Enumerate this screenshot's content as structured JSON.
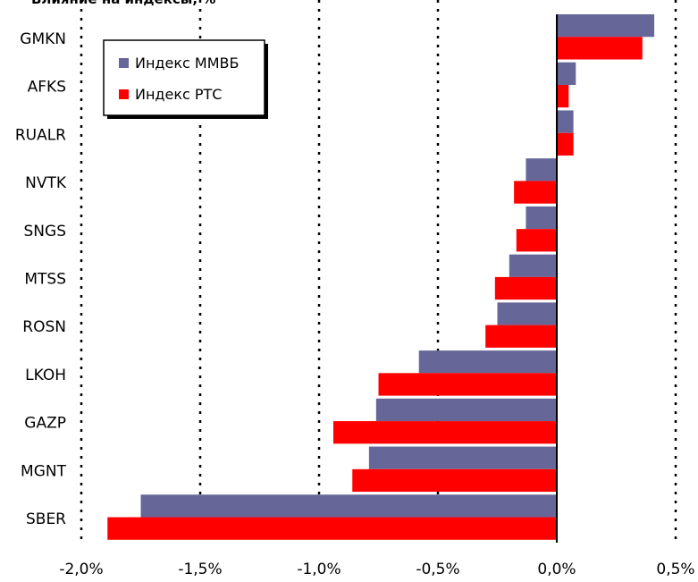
{
  "chart_data": {
    "type": "bar",
    "orientation": "horizontal",
    "title": "Влияние на индексы, %",
    "categories": [
      "GMKN",
      "AFKS",
      "RUALR",
      "NVTK",
      "SNGS",
      "MTSS",
      "ROSN",
      "LKOH",
      "GAZP",
      "MGNT",
      "SBER"
    ],
    "series": [
      {
        "name": "Индекс ММВБ",
        "color": "#666699",
        "values": [
          0.41,
          0.08,
          0.07,
          -0.13,
          -0.13,
          -0.2,
          -0.25,
          -0.58,
          -0.76,
          -0.79,
          -1.75
        ]
      },
      {
        "name": "Индекс РТС",
        "color": "#ff0000",
        "values": [
          0.36,
          0.05,
          0.07,
          -0.18,
          -0.17,
          -0.26,
          -0.3,
          -0.75,
          -0.94,
          -0.86,
          -1.89
        ]
      }
    ],
    "xlim": [
      -2.0,
      0.5
    ],
    "xticks": [
      -2.0,
      -1.5,
      -1.0,
      -0.5,
      0.0,
      0.5
    ],
    "xtick_labels": [
      "-2,0%",
      "-1,5%",
      "-1,0%",
      "-0,5%",
      "0,0%",
      "0,5%"
    ],
    "grid": "vertical dotted",
    "legend_position": "top-left"
  }
}
